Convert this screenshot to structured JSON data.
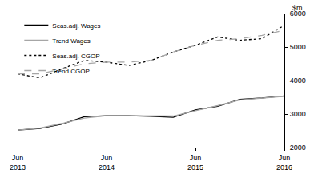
{
  "chart_data": {
    "type": "line",
    "ylabel": "$m",
    "categories": [
      "Jun 2013",
      null,
      null,
      null,
      "Jun 2014",
      null,
      null,
      null,
      "Jun 2015",
      null,
      null,
      null,
      "Jun 2016"
    ],
    "series": [
      {
        "name": "Seas.adj. Wages",
        "color": "#000000",
        "line_style": "solid",
        "values": [
          2520,
          2570,
          2700,
          2920,
          2950,
          2950,
          2930,
          2900,
          3120,
          3230,
          3440,
          3480,
          3540
        ]
      },
      {
        "name": "Trend Wages",
        "color": "#a6a6a6",
        "line_style": "solid",
        "values": [
          2520,
          2580,
          2720,
          2880,
          2950,
          2950,
          2940,
          2940,
          3100,
          3250,
          3420,
          3480,
          3530
        ]
      },
      {
        "name": "Seas.adj. CGOP",
        "color": "#000000",
        "line_style": "dot",
        "values": [
          4200,
          4080,
          4350,
          4600,
          4550,
          4450,
          4600,
          4850,
          5050,
          5300,
          5200,
          5250,
          5650
        ]
      },
      {
        "name": "Trend CGOP",
        "color": "#a6a6a6",
        "line_style": "dash",
        "values": [
          4200,
          4200,
          4350,
          4500,
          4550,
          4550,
          4600,
          4850,
          5050,
          5200,
          5250,
          5350,
          5500
        ]
      }
    ],
    "ylim": [
      2000,
      6000
    ],
    "yticks": [
      2000,
      3000,
      4000,
      5000,
      6000
    ],
    "grid": false,
    "legend": "top-left"
  }
}
